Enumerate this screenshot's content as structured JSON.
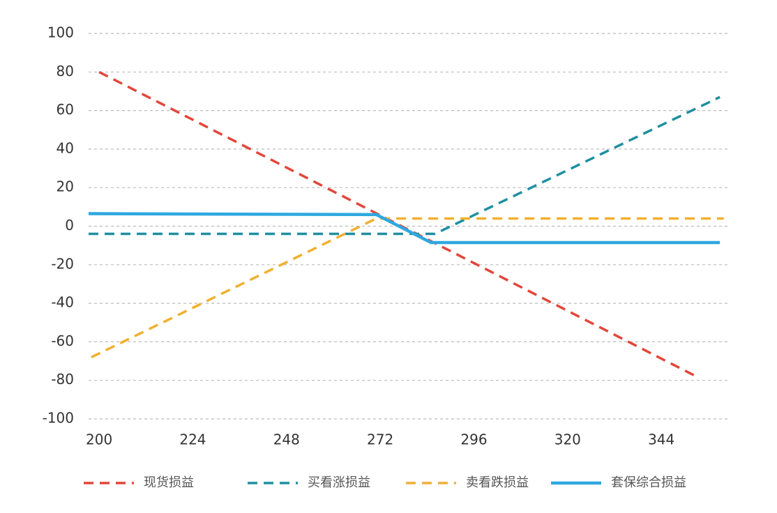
{
  "chart_data": {
    "type": "line",
    "xlim": [
      197.3,
      361.3
    ],
    "xticks": [
      200,
      224,
      248,
      272,
      296,
      320,
      344
    ],
    "ylim": [
      -100,
      100
    ],
    "yticks": [
      -100,
      -80,
      -60,
      -40,
      -20,
      0,
      20,
      40,
      60,
      80,
      100
    ],
    "grid": true,
    "legend": "bottom",
    "series": [
      {
        "name": "现货损益",
        "color": "#e2463a",
        "dashed": true,
        "x": [
          200,
          353
        ],
        "values": [
          80,
          -78
        ]
      },
      {
        "name": "买看涨损益",
        "color": "#1f8fa0",
        "dashed": true,
        "x": [
          197.3,
          286,
          359
        ],
        "values": [
          -4,
          -4,
          67
        ]
      },
      {
        "name": "卖看跌损益",
        "color": "#f0b030",
        "dashed": true,
        "x": [
          198,
          271,
          360
        ],
        "values": [
          -68,
          4,
          4
        ]
      },
      {
        "name": "套保综合损益",
        "color": "#2ea8e0",
        "dashed": false,
        "x": [
          197.3,
          271,
          285,
          359
        ],
        "values": [
          6.5,
          6,
          -8.5,
          -8.5
        ]
      }
    ]
  }
}
